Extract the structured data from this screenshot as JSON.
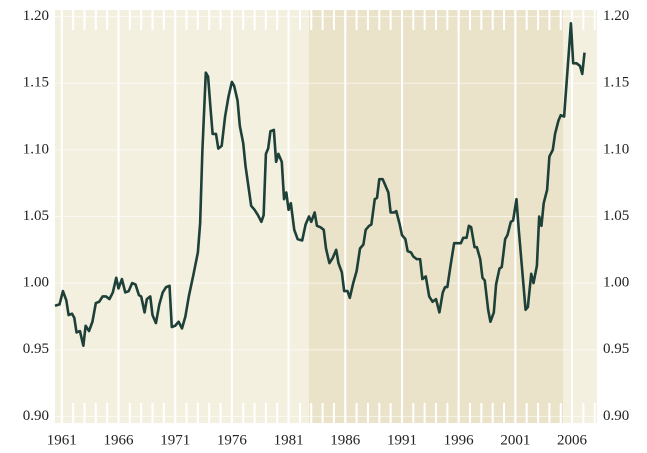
{
  "chart_data": {
    "type": "line",
    "xticks": [
      1961,
      1966,
      1971,
      1976,
      1981,
      1986,
      1991,
      1996,
      2001,
      2006
    ],
    "xlim": [
      1960.4,
      2008.2
    ],
    "ylim": [
      0.895,
      1.205
    ],
    "yticks": [
      {
        "value": 0.9,
        "label": "0.90"
      },
      0.95,
      {
        "value": 1.0,
        "label": "1.00"
      },
      1.05,
      {
        "value": 1.1,
        "label": "1.10"
      },
      1.15,
      {
        "value": 1.2,
        "label": "1.20"
      }
    ],
    "grid": true,
    "shaded_region": [
      1982.8,
      2005.2
    ],
    "series": [
      {
        "color": "#1d4038",
        "x": [
          1960.4,
          1960.8,
          1961.1,
          1961.4,
          1961.6,
          1961.9,
          1962.1,
          1962.3,
          1962.6,
          1962.9,
          1963.1,
          1963.4,
          1963.7,
          1964.0,
          1964.3,
          1964.6,
          1964.9,
          1965.2,
          1965.5,
          1965.8,
          1966.0,
          1966.3,
          1966.6,
          1966.9,
          1967.2,
          1967.5,
          1967.8,
          1968.0,
          1968.3,
          1968.5,
          1968.8,
          1969.0,
          1969.3,
          1969.6,
          1969.9,
          1970.2,
          1970.5,
          1970.7,
          1971.0,
          1971.3,
          1971.6,
          1971.9,
          1972.2,
          1972.6,
          1973.0,
          1973.2,
          1973.4,
          1973.7,
          1973.9,
          1974.1,
          1974.3,
          1974.6,
          1974.8,
          1975.1,
          1975.4,
          1975.7,
          1976.0,
          1976.2,
          1976.5,
          1976.7,
          1977.0,
          1977.2,
          1977.5,
          1977.7,
          1978.0,
          1978.3,
          1978.6,
          1978.8,
          1979.0,
          1979.2,
          1979.4,
          1979.7,
          1979.9,
          1980.1,
          1980.4,
          1980.6,
          1980.8,
          1981.0,
          1981.2,
          1981.5,
          1981.8,
          1982.2,
          1982.5,
          1982.8,
          1983.0,
          1983.3,
          1983.5,
          1983.8,
          1984.1,
          1984.3,
          1984.6,
          1984.9,
          1985.2,
          1985.4,
          1985.7,
          1985.9,
          1986.2,
          1986.4,
          1986.7,
          1987.0,
          1987.3,
          1987.6,
          1987.8,
          1988.1,
          1988.3,
          1988.6,
          1988.8,
          1989.0,
          1989.3,
          1989.5,
          1989.8,
          1990.0,
          1990.3,
          1990.5,
          1990.8,
          1991.0,
          1991.3,
          1991.5,
          1991.8,
          1992.0,
          1992.3,
          1992.6,
          1992.8,
          1993.1,
          1993.4,
          1993.7,
          1994.0,
          1994.3,
          1994.6,
          1994.8,
          1995.0,
          1995.3,
          1995.6,
          1995.9,
          1996.2,
          1996.4,
          1996.7,
          1996.9,
          1997.1,
          1997.4,
          1997.6,
          1997.9,
          1998.1,
          1998.3,
          1998.6,
          1998.8,
          1999.1,
          1999.3,
          1999.6,
          1999.8,
          2000.1,
          2000.3,
          2000.6,
          2000.8,
          2001.1,
          2001.3,
          2001.6,
          2001.9,
          2002.1,
          2002.4,
          2002.6,
          2002.9,
          2003.1,
          2003.3,
          2003.5,
          2003.8,
          2004.0,
          2004.3,
          2004.5,
          2004.8,
          2005.0,
          2005.3,
          2005.6,
          2005.9,
          2006.1,
          2006.4,
          2006.7,
          2006.9,
          2007.1
        ],
        "values": [
          0.983,
          0.984,
          0.994,
          0.987,
          0.976,
          0.977,
          0.974,
          0.963,
          0.964,
          0.953,
          0.968,
          0.964,
          0.971,
          0.985,
          0.986,
          0.99,
          0.99,
          0.988,
          0.993,
          1.004,
          0.996,
          1.003,
          0.993,
          0.994,
          1.0,
          0.999,
          0.991,
          0.99,
          0.978,
          0.988,
          0.99,
          0.976,
          0.97,
          0.984,
          0.993,
          0.997,
          0.998,
          0.967,
          0.968,
          0.971,
          0.966,
          0.975,
          0.99,
          1.006,
          1.023,
          1.045,
          1.1,
          1.158,
          1.155,
          1.133,
          1.112,
          1.112,
          1.101,
          1.103,
          1.125,
          1.14,
          1.151,
          1.148,
          1.137,
          1.118,
          1.105,
          1.088,
          1.07,
          1.058,
          1.055,
          1.051,
          1.046,
          1.051,
          1.097,
          1.101,
          1.114,
          1.115,
          1.091,
          1.097,
          1.091,
          1.063,
          1.068,
          1.055,
          1.06,
          1.04,
          1.033,
          1.032,
          1.044,
          1.05,
          1.046,
          1.053,
          1.043,
          1.042,
          1.04,
          1.026,
          1.015,
          1.019,
          1.025,
          1.015,
          1.008,
          0.994,
          0.994,
          0.989,
          1.0,
          1.009,
          1.026,
          1.029,
          1.04,
          1.043,
          1.044,
          1.063,
          1.064,
          1.078,
          1.078,
          1.074,
          1.068,
          1.053,
          1.053,
          1.054,
          1.044,
          1.036,
          1.033,
          1.024,
          1.023,
          1.02,
          1.018,
          1.018,
          1.003,
          1.005,
          0.99,
          0.986,
          0.988,
          0.978,
          0.993,
          0.997,
          0.997,
          1.014,
          1.03,
          1.03,
          1.03,
          1.034,
          1.034,
          1.043,
          1.042,
          1.027,
          1.027,
          1.018,
          1.004,
          1.002,
          0.98,
          0.971,
          0.978,
          0.999,
          1.011,
          1.012,
          1.033,
          1.036,
          1.046,
          1.047,
          1.063,
          1.04,
          1.01,
          0.98,
          0.982,
          1.007,
          1.0,
          1.013,
          1.05,
          1.043,
          1.06,
          1.07,
          1.095,
          1.1,
          1.112,
          1.122,
          1.126,
          1.125,
          1.16,
          1.195,
          1.165,
          1.165,
          1.163,
          1.157,
          1.173
        ]
      }
    ]
  }
}
